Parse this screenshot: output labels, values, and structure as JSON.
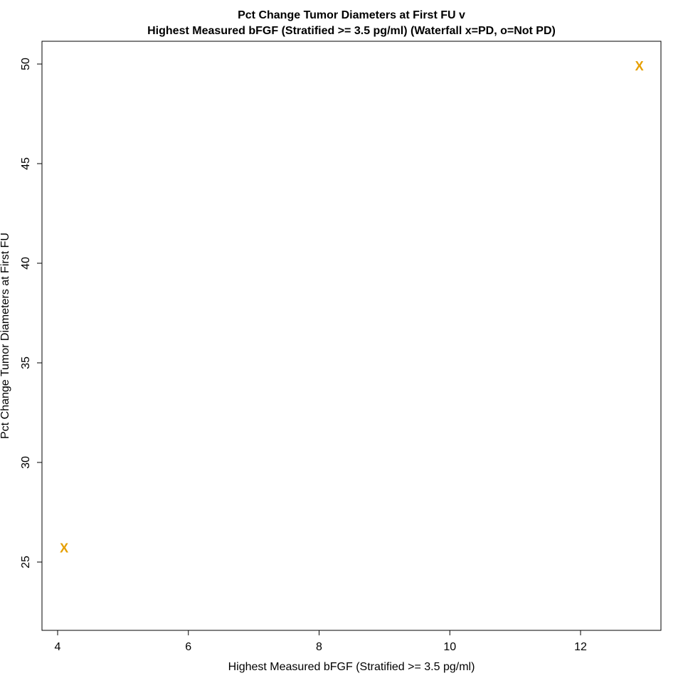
{
  "chart_data": {
    "type": "scatter",
    "title_line1": "Pct Change Tumor Diameters at First FU v",
    "title_line2": "Highest Measured bFGF (Stratified >= 3.5 pg/ml) (Waterfall x=PD, o=Not PD)",
    "xlabel": "Highest Measured bFGF (Stratified >= 3.5 pg/ml)",
    "ylabel": "Pct Change Tumor Diameters at First FU",
    "xlim": [
      4.0,
      13.0
    ],
    "ylim": [
      22.0,
      51.0
    ],
    "x_ticks": [
      4,
      6,
      8,
      10,
      12
    ],
    "y_ticks": [
      25,
      30,
      35,
      40,
      45,
      50
    ],
    "grid": false,
    "marker_color": "#E69F00",
    "points": [
      {
        "x": 4.1,
        "y": 25.7,
        "marker": "x"
      },
      {
        "x": 12.9,
        "y": 49.9,
        "marker": "x"
      }
    ]
  }
}
